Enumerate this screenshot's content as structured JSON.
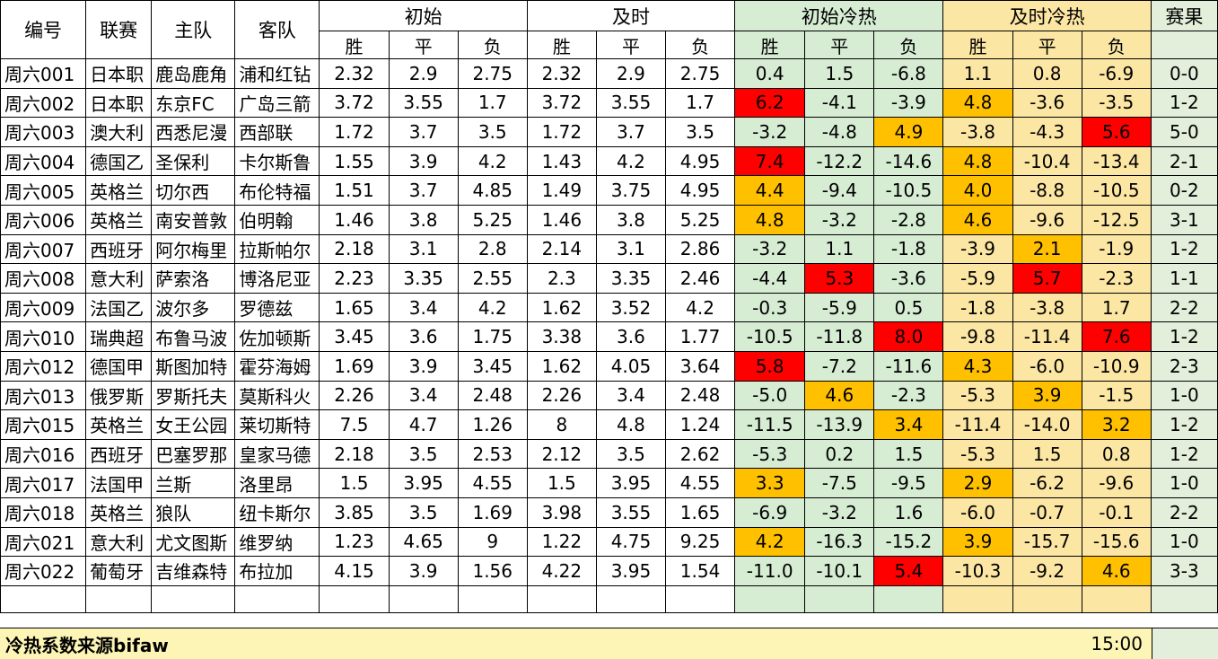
{
  "headers": {
    "id": "编号",
    "league": "联赛",
    "home": "主队",
    "away": "客队",
    "initial": "初始",
    "live": "及时",
    "initial_heat": "初始冷热",
    "live_heat": "及时冷热",
    "result": "赛果",
    "win": "胜",
    "draw": "平",
    "loss": "负"
  },
  "colors": {
    "green_bg": "#d6ecd3",
    "yellow_bg": "#fce6a4",
    "red": "#ff0000",
    "orange": "#ffc000"
  },
  "rows": [
    {
      "id": "周六001",
      "league": "日本职",
      "home": "鹿岛鹿角",
      "away": "浦和红钻",
      "i": [
        "2.32",
        "2.9",
        "2.75"
      ],
      "l": [
        "2.32",
        "2.9",
        "2.75"
      ],
      "ih": [
        "0.4",
        "1.5",
        "-6.8"
      ],
      "lh": [
        "1.1",
        "0.8",
        "-6.9"
      ],
      "r": "0-0",
      "ihc": [
        "",
        "",
        ""
      ],
      "lhc": [
        "",
        "",
        ""
      ]
    },
    {
      "id": "周六002",
      "league": "日本职",
      "home": "东京FC",
      "away": "广岛三箭",
      "i": [
        "3.72",
        "3.55",
        "1.7"
      ],
      "l": [
        "3.72",
        "3.55",
        "1.7"
      ],
      "ih": [
        "6.2",
        "-4.1",
        "-3.9"
      ],
      "lh": [
        "4.8",
        "-3.6",
        "-3.5"
      ],
      "r": "1-2",
      "ihc": [
        "red",
        "",
        ""
      ],
      "lhc": [
        "ora",
        "",
        ""
      ]
    },
    {
      "id": "周六003",
      "league": "澳大利",
      "home": "西悉尼漫",
      "away": "西部联",
      "i": [
        "1.72",
        "3.7",
        "3.5"
      ],
      "l": [
        "1.72",
        "3.7",
        "3.5"
      ],
      "ih": [
        "-3.2",
        "-4.8",
        "4.9"
      ],
      "lh": [
        "-3.8",
        "-4.3",
        "5.6"
      ],
      "r": "5-0",
      "ihc": [
        "",
        "",
        "ora"
      ],
      "lhc": [
        "",
        "",
        "red"
      ]
    },
    {
      "id": "周六004",
      "league": "德国乙",
      "home": "圣保利",
      "away": "卡尔斯鲁",
      "i": [
        "1.55",
        "3.9",
        "4.2"
      ],
      "l": [
        "1.43",
        "4.2",
        "4.95"
      ],
      "ih": [
        "7.4",
        "-12.2",
        "-14.6"
      ],
      "lh": [
        "4.8",
        "-10.4",
        "-13.4"
      ],
      "r": "2-1",
      "ihc": [
        "red",
        "",
        ""
      ],
      "lhc": [
        "ora",
        "",
        ""
      ]
    },
    {
      "id": "周六005",
      "league": "英格兰",
      "home": "切尔西",
      "away": "布伦特福",
      "i": [
        "1.51",
        "3.7",
        "4.85"
      ],
      "l": [
        "1.49",
        "3.75",
        "4.95"
      ],
      "ih": [
        "4.4",
        "-9.4",
        "-10.5"
      ],
      "lh": [
        "4.0",
        "-8.8",
        "-10.5"
      ],
      "r": "0-2",
      "ihc": [
        "ora",
        "",
        ""
      ],
      "lhc": [
        "ora",
        "",
        ""
      ]
    },
    {
      "id": "周六006",
      "league": "英格兰",
      "home": "南安普敦",
      "away": "伯明翰",
      "i": [
        "1.46",
        "3.8",
        "5.25"
      ],
      "l": [
        "1.46",
        "3.8",
        "5.25"
      ],
      "ih": [
        "4.8",
        "-3.2",
        "-2.8"
      ],
      "lh": [
        "4.6",
        "-9.6",
        "-12.5"
      ],
      "r": "3-1",
      "ihc": [
        "ora",
        "",
        ""
      ],
      "lhc": [
        "ora",
        "",
        ""
      ]
    },
    {
      "id": "周六007",
      "league": "西班牙",
      "home": "阿尔梅里",
      "away": "拉斯帕尔",
      "i": [
        "2.18",
        "3.1",
        "2.8"
      ],
      "l": [
        "2.14",
        "3.1",
        "2.86"
      ],
      "ih": [
        "-3.2",
        "1.1",
        "-1.8"
      ],
      "lh": [
        "-3.9",
        "2.1",
        "-1.9"
      ],
      "r": "1-2",
      "ihc": [
        "",
        "",
        ""
      ],
      "lhc": [
        "",
        "ora",
        ""
      ]
    },
    {
      "id": "周六008",
      "league": "意大利",
      "home": "萨索洛",
      "away": "博洛尼亚",
      "i": [
        "2.23",
        "3.35",
        "2.55"
      ],
      "l": [
        "2.3",
        "3.35",
        "2.46"
      ],
      "ih": [
        "-4.4",
        "5.3",
        "-3.6"
      ],
      "lh": [
        "-5.9",
        "5.7",
        "-2.3"
      ],
      "r": "1-1",
      "ihc": [
        "",
        "red",
        ""
      ],
      "lhc": [
        "",
        "red",
        ""
      ]
    },
    {
      "id": "周六009",
      "league": "法国乙",
      "home": "波尔多",
      "away": "罗德兹",
      "i": [
        "1.65",
        "3.4",
        "4.2"
      ],
      "l": [
        "1.62",
        "3.52",
        "4.2"
      ],
      "ih": [
        "-0.3",
        "-5.9",
        "0.5"
      ],
      "lh": [
        "-1.8",
        "-3.8",
        "1.7"
      ],
      "r": "2-2",
      "ihc": [
        "",
        "",
        ""
      ],
      "lhc": [
        "",
        "",
        ""
      ]
    },
    {
      "id": "周六010",
      "league": "瑞典超",
      "home": "布鲁马波",
      "away": "佐加顿斯",
      "i": [
        "3.45",
        "3.6",
        "1.75"
      ],
      "l": [
        "3.38",
        "3.6",
        "1.77"
      ],
      "ih": [
        "-10.5",
        "-11.8",
        "8.0"
      ],
      "lh": [
        "-9.8",
        "-11.4",
        "7.6"
      ],
      "r": "1-2",
      "ihc": [
        "",
        "",
        "red"
      ],
      "lhc": [
        "",
        "",
        "red"
      ]
    },
    {
      "id": "周六012",
      "league": "德国甲",
      "home": "斯图加特",
      "away": "霍芬海姆",
      "i": [
        "1.69",
        "3.9",
        "3.45"
      ],
      "l": [
        "1.62",
        "4.05",
        "3.64"
      ],
      "ih": [
        "5.8",
        "-7.2",
        "-11.6"
      ],
      "lh": [
        "4.3",
        "-6.0",
        "-10.9"
      ],
      "r": "2-3",
      "ihc": [
        "red",
        "",
        ""
      ],
      "lhc": [
        "ora",
        "",
        ""
      ]
    },
    {
      "id": "周六013",
      "league": "俄罗斯",
      "home": "罗斯托夫",
      "away": "莫斯科火",
      "i": [
        "2.26",
        "3.4",
        "2.48"
      ],
      "l": [
        "2.26",
        "3.4",
        "2.48"
      ],
      "ih": [
        "-5.0",
        "4.6",
        "-2.3"
      ],
      "lh": [
        "-5.3",
        "3.9",
        "-1.5"
      ],
      "r": "1-0",
      "ihc": [
        "",
        "ora",
        ""
      ],
      "lhc": [
        "",
        "ora",
        ""
      ]
    },
    {
      "id": "周六015",
      "league": "英格兰",
      "home": "女王公园",
      "away": "莱切斯特",
      "i": [
        "7.5",
        "4.7",
        "1.26"
      ],
      "l": [
        "8",
        "4.8",
        "1.24"
      ],
      "ih": [
        "-11.5",
        "-13.9",
        "3.4"
      ],
      "lh": [
        "-11.4",
        "-14.0",
        "3.2"
      ],
      "r": "1-2",
      "ihc": [
        "",
        "",
        "ora"
      ],
      "lhc": [
        "",
        "",
        "ora"
      ]
    },
    {
      "id": "周六016",
      "league": "西班牙",
      "home": "巴塞罗那",
      "away": "皇家马德",
      "i": [
        "2.18",
        "3.5",
        "2.53"
      ],
      "l": [
        "2.12",
        "3.5",
        "2.62"
      ],
      "ih": [
        "-5.3",
        "0.2",
        "1.5"
      ],
      "lh": [
        "-5.3",
        "1.5",
        "0.8"
      ],
      "r": "1-2",
      "ihc": [
        "",
        "",
        ""
      ],
      "lhc": [
        "",
        "",
        ""
      ]
    },
    {
      "id": "周六017",
      "league": "法国甲",
      "home": "兰斯",
      "away": "洛里昂",
      "i": [
        "1.5",
        "3.95",
        "4.55"
      ],
      "l": [
        "1.5",
        "3.95",
        "4.55"
      ],
      "ih": [
        "3.3",
        "-7.5",
        "-9.5"
      ],
      "lh": [
        "2.9",
        "-6.2",
        "-9.6"
      ],
      "r": "1-0",
      "ihc": [
        "ora",
        "",
        ""
      ],
      "lhc": [
        "ora",
        "",
        ""
      ]
    },
    {
      "id": "周六018",
      "league": "英格兰",
      "home": "狼队",
      "away": "纽卡斯尔",
      "i": [
        "3.85",
        "3.5",
        "1.69"
      ],
      "l": [
        "3.98",
        "3.55",
        "1.65"
      ],
      "ih": [
        "-6.9",
        "-3.2",
        "1.6"
      ],
      "lh": [
        "-6.0",
        "-0.7",
        "-0.1"
      ],
      "r": "2-2",
      "ihc": [
        "",
        "",
        ""
      ],
      "lhc": [
        "",
        "",
        ""
      ]
    },
    {
      "id": "周六021",
      "league": "意大利",
      "home": "尤文图斯",
      "away": "维罗纳",
      "i": [
        "1.23",
        "4.65",
        "9"
      ],
      "l": [
        "1.22",
        "4.75",
        "9.25"
      ],
      "ih": [
        "4.2",
        "-16.3",
        "-15.2"
      ],
      "lh": [
        "3.9",
        "-15.7",
        "-15.6"
      ],
      "r": "1-0",
      "ihc": [
        "ora",
        "",
        ""
      ],
      "lhc": [
        "ora",
        "",
        ""
      ]
    },
    {
      "id": "周六022",
      "league": "葡萄牙",
      "home": "吉维森特",
      "away": "布拉加",
      "i": [
        "4.15",
        "3.9",
        "1.56"
      ],
      "l": [
        "4.22",
        "3.95",
        "1.54"
      ],
      "ih": [
        "-11.0",
        "-10.1",
        "5.4"
      ],
      "lh": [
        "-10.3",
        "-9.2",
        "4.6"
      ],
      "r": "3-3",
      "ihc": [
        "",
        "",
        "red"
      ],
      "lhc": [
        "",
        "",
        "ora"
      ]
    }
  ],
  "footer": {
    "note": "冷热系数来源bifaw",
    "time": "15:00"
  }
}
